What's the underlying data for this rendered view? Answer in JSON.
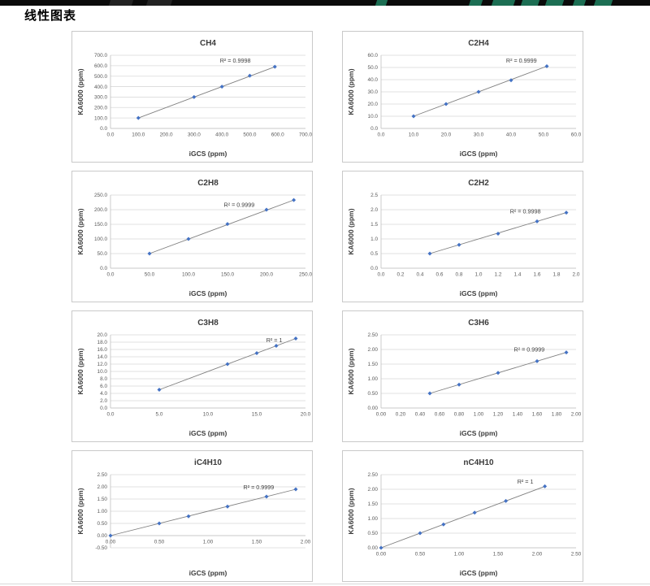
{
  "page": {
    "title": "线性图表"
  },
  "theme": {
    "banner_black": "#0b0b0b",
    "banner_green": "#1c6e53",
    "banner_dim": "#222222",
    "card_border": "#c9c9c9",
    "marker_color": "#4472c4",
    "trend_color": "#808080",
    "grid_color": "#d9d9d9",
    "axis_color": "#bfbfbf",
    "tick_text_color": "#595959",
    "title_text_color": "#3b3b3b",
    "r2_text_color": "#404040"
  },
  "chart_data": [
    {
      "type": "scatter",
      "title": "CH4",
      "xlabel": "iGCS (ppm)",
      "ylabel": "KA6000 (ppm)",
      "r2_label": "R² = 0.9998",
      "r2_fx": 0.64,
      "r2_fy": 0.1,
      "xlim": [
        0,
        700
      ],
      "ylim": [
        0,
        700
      ],
      "xticks": {
        "values": [
          0,
          100,
          200,
          300,
          400,
          500,
          600,
          700
        ],
        "labels": [
          "0.0",
          "100.0",
          "200.0",
          "300.0",
          "400.0",
          "500.0",
          "600.0",
          "700.0"
        ]
      },
      "yticks": {
        "values": [
          0,
          100,
          200,
          300,
          400,
          500,
          600,
          700
        ],
        "labels": [
          "0.0",
          "100.0",
          "200.0",
          "300.0",
          "400.0",
          "500.0",
          "600.0",
          "700.0"
        ]
      },
      "x": [
        100,
        300,
        400,
        500,
        590
      ],
      "y": [
        100,
        300,
        400,
        505,
        590
      ],
      "grid": true,
      "legend": "none"
    },
    {
      "type": "scatter",
      "title": "C2H4",
      "xlabel": "iGCS (ppm)",
      "ylabel": "KA6000 (ppm)",
      "r2_label": "R² = 0.9999",
      "r2_fx": 0.72,
      "r2_fy": 0.1,
      "xlim": [
        0,
        60
      ],
      "ylim": [
        0,
        60
      ],
      "xticks": {
        "values": [
          0,
          10,
          20,
          30,
          40,
          50,
          60
        ],
        "labels": [
          "0.0",
          "10.0",
          "20.0",
          "30.0",
          "40.0",
          "50.0",
          "60.0"
        ]
      },
      "yticks": {
        "values": [
          0,
          10,
          20,
          30,
          40,
          50,
          60
        ],
        "labels": [
          "0.0",
          "10.0",
          "20.0",
          "30.0",
          "40.0",
          "50.0",
          "60.0"
        ]
      },
      "x": [
        10,
        20,
        30,
        40,
        51
      ],
      "y": [
        10,
        20,
        30,
        39.5,
        51
      ],
      "grid": true,
      "legend": "none"
    },
    {
      "type": "scatter",
      "title": "C2H8",
      "xlabel": "iGCS (ppm)",
      "ylabel": "KA6000 (ppm)",
      "r2_label": "R² = 0.9999",
      "r2_fx": 0.66,
      "r2_fy": 0.16,
      "xlim": [
        0,
        250
      ],
      "ylim": [
        0,
        250
      ],
      "xticks": {
        "values": [
          0,
          50,
          100,
          150,
          200,
          250
        ],
        "labels": [
          "0.0",
          "50.0",
          "100.0",
          "150.0",
          "200.0",
          "250.0"
        ]
      },
      "yticks": {
        "values": [
          0,
          50,
          100,
          150,
          200,
          250
        ],
        "labels": [
          "0.0",
          "50.0",
          "100.0",
          "150.0",
          "200.0",
          "250.0"
        ]
      },
      "x": [
        50,
        100,
        150,
        200,
        235
      ],
      "y": [
        50,
        100,
        151,
        200,
        233
      ],
      "grid": true,
      "legend": "none"
    },
    {
      "type": "scatter",
      "title": "C2H2",
      "xlabel": "iGCS (ppm)",
      "ylabel": "KA6000 (ppm)",
      "r2_label": "R² = 0.9998",
      "r2_fx": 0.74,
      "r2_fy": 0.25,
      "xlim": [
        0,
        2.0
      ],
      "ylim": [
        0,
        2.5
      ],
      "xticks": {
        "values": [
          0,
          0.2,
          0.4,
          0.6,
          0.8,
          1.0,
          1.2,
          1.4,
          1.6,
          1.8,
          2.0
        ],
        "labels": [
          "0.0",
          "0.2",
          "0.4",
          "0.6",
          "0.8",
          "1.0",
          "1.2",
          "1.4",
          "1.6",
          "1.8",
          "2.0"
        ]
      },
      "yticks": {
        "values": [
          0,
          0.5,
          1.0,
          1.5,
          2.0,
          2.5
        ],
        "labels": [
          "0.0",
          "0.5",
          "1.0",
          "1.5",
          "2.0",
          "2.5"
        ]
      },
      "x": [
        0.5,
        0.8,
        1.2,
        1.6,
        1.9
      ],
      "y": [
        0.5,
        0.8,
        1.18,
        1.6,
        1.9
      ],
      "grid": true,
      "legend": "none"
    },
    {
      "type": "scatter",
      "title": "C3H8",
      "xlabel": "iGCS (ppm)",
      "ylabel": "KA6000 (ppm)",
      "r2_label": "R² = 1",
      "r2_fx": 0.84,
      "r2_fy": 0.1,
      "xlim": [
        0,
        20
      ],
      "ylim": [
        0,
        20
      ],
      "xticks": {
        "values": [
          0,
          5,
          10,
          15,
          20
        ],
        "labels": [
          "0.0",
          "5.0",
          "10.0",
          "15.0",
          "20.0"
        ]
      },
      "yticks": {
        "values": [
          0,
          2,
          4,
          6,
          8,
          10,
          12,
          14,
          16,
          18,
          20
        ],
        "labels": [
          "0.0",
          "2.0",
          "4.0",
          "6.0",
          "8.0",
          "10.0",
          "12.0",
          "14.0",
          "16.0",
          "18.0",
          "20.0"
        ]
      },
      "x": [
        5,
        12,
        15,
        17,
        19
      ],
      "y": [
        5,
        12,
        15,
        17,
        19
      ],
      "grid": true,
      "legend": "none"
    },
    {
      "type": "scatter",
      "title": "C3H6",
      "xlabel": "iGCS (ppm)",
      "ylabel": "KA6000 (ppm)",
      "r2_label": "R² = 0.9999",
      "r2_fx": 0.76,
      "r2_fy": 0.23,
      "xlim": [
        0,
        2.0
      ],
      "ylim": [
        0,
        2.5
      ],
      "xticks": {
        "values": [
          0,
          0.2,
          0.4,
          0.6,
          0.8,
          1.0,
          1.2,
          1.4,
          1.6,
          1.8,
          2.0
        ],
        "labels": [
          "0.00",
          "0.20",
          "0.40",
          "0.60",
          "0.80",
          "1.00",
          "1.20",
          "1.40",
          "1.60",
          "1.80",
          "2.00"
        ]
      },
      "yticks": {
        "values": [
          0,
          0.5,
          1.0,
          1.5,
          2.0,
          2.5
        ],
        "labels": [
          "0.00",
          "0.50",
          "1.00",
          "1.50",
          "2.00",
          "2.50"
        ]
      },
      "x": [
        0.5,
        0.8,
        1.2,
        1.6,
        1.9
      ],
      "y": [
        0.5,
        0.8,
        1.2,
        1.6,
        1.9
      ],
      "grid": true,
      "legend": "none"
    },
    {
      "type": "scatter",
      "title": "iC4H10",
      "xlabel": "iGCS (ppm)",
      "ylabel": "KA6000 (ppm)",
      "r2_label": "R² = 0.9999",
      "r2_fx": 0.76,
      "r2_fy": 0.2,
      "xlim": [
        0,
        2.0
      ],
      "ylim": [
        -0.5,
        2.5
      ],
      "xticks": {
        "values": [
          0,
          0.5,
          1.0,
          1.5,
          2.0
        ],
        "labels": [
          "0.00",
          "0.50",
          "1.00",
          "1.50",
          "2.00"
        ]
      },
      "yticks": {
        "values": [
          -0.5,
          0,
          0.5,
          1.0,
          1.5,
          2.0,
          2.5
        ],
        "labels": [
          "-0.50",
          "0.00",
          "0.50",
          "1.00",
          "1.50",
          "2.00",
          "2.50"
        ]
      },
      "x": [
        0,
        0.5,
        0.8,
        1.2,
        1.6,
        1.9
      ],
      "y": [
        0,
        0.5,
        0.79,
        1.19,
        1.6,
        1.9
      ],
      "grid": true,
      "legend": "none"
    },
    {
      "type": "scatter",
      "title": "nC4H10",
      "xlabel": "iGCS (ppm)",
      "ylabel": "KA6000 (ppm)",
      "r2_label": "R² = 1",
      "r2_fx": 0.74,
      "r2_fy": 0.12,
      "xlim": [
        0,
        2.5
      ],
      "ylim": [
        0,
        2.5
      ],
      "xticks": {
        "values": [
          0,
          0.5,
          1.0,
          1.5,
          2.0,
          2.5
        ],
        "labels": [
          "0.00",
          "0.50",
          "1.00",
          "1.50",
          "2.00",
          "2.50"
        ]
      },
      "yticks": {
        "values": [
          0,
          0.5,
          1.0,
          1.5,
          2.0,
          2.5
        ],
        "labels": [
          "0.00",
          "0.50",
          "1.00",
          "1.50",
          "2.00",
          "2.50"
        ]
      },
      "x": [
        0,
        0.5,
        0.8,
        1.2,
        1.6,
        2.1
      ],
      "y": [
        0,
        0.5,
        0.8,
        1.2,
        1.6,
        2.1
      ],
      "grid": true,
      "legend": "none"
    }
  ]
}
